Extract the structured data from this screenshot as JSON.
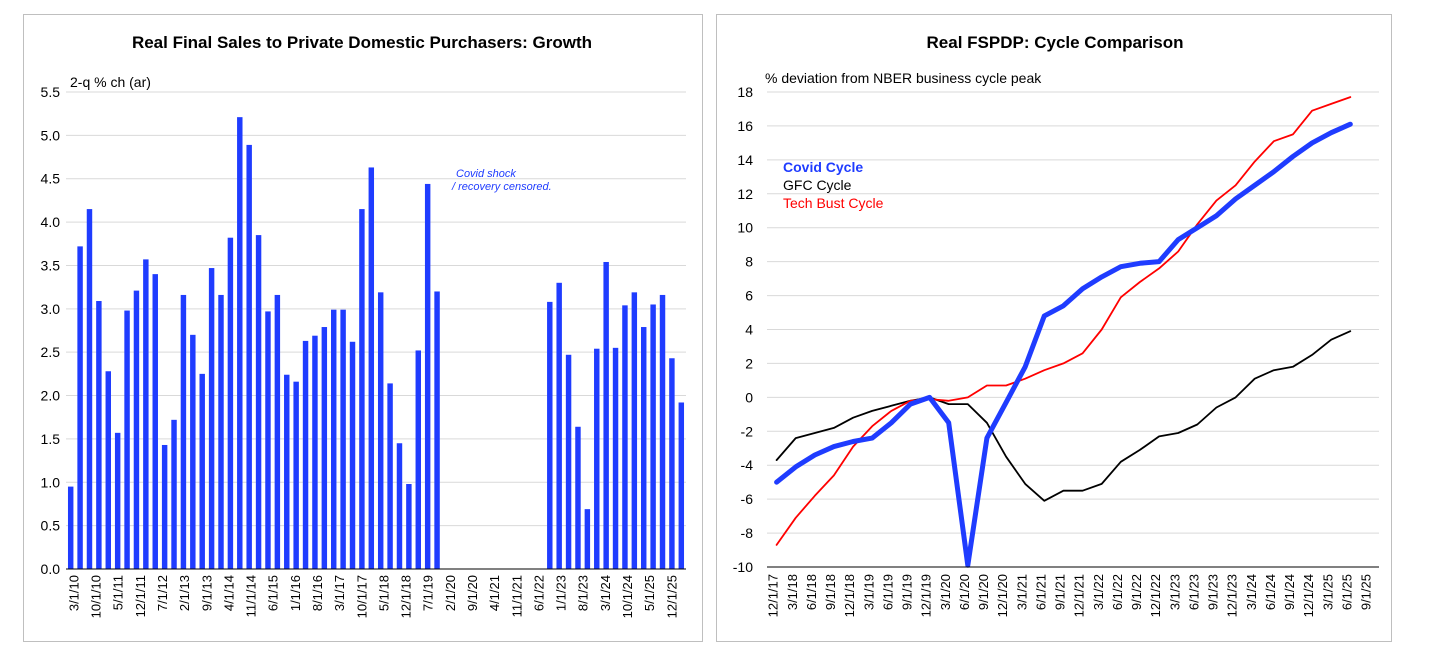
{
  "chart_data": [
    {
      "type": "bar",
      "title": "Real Final Sales to Private Domestic Purchasers: Growth",
      "ylabel": "2-q % ch (ar)",
      "ylim": [
        0,
        5.5
      ],
      "yticks": [
        "0.0",
        "0.5",
        "1.0",
        "1.5",
        "2.0",
        "2.5",
        "3.0",
        "3.5",
        "4.0",
        "4.5",
        "5.0",
        "5.5"
      ],
      "color": "#1f3cff",
      "grid": true,
      "annotation": [
        "Covid shock",
        "/ recovery censored."
      ],
      "x_labels": [
        "3/1/10",
        "10/1/10",
        "5/1/11",
        "12/1/11",
        "7/1/12",
        "2/1/13",
        "9/1/13",
        "4/1/14",
        "11/1/14",
        "6/1/15",
        "1/1/16",
        "8/1/16",
        "3/1/17",
        "10/1/17",
        "5/1/18",
        "12/1/18",
        "7/1/19",
        "2/1/20",
        "9/1/20",
        "4/1/21",
        "11/1/21",
        "6/1/22",
        "1/1/23",
        "8/1/23",
        "3/1/24",
        "10/1/24",
        "5/1/25",
        "12/1/25"
      ],
      "values": [
        0.95,
        3.72,
        4.15,
        3.09,
        2.28,
        1.57,
        2.98,
        3.21,
        3.57,
        3.4,
        1.43,
        1.72,
        3.16,
        2.7,
        2.25,
        3.47,
        3.16,
        3.82,
        5.21,
        4.89,
        3.85,
        2.97,
        3.16,
        2.24,
        2.16,
        2.63,
        2.69,
        2.79,
        2.99,
        2.99,
        2.62,
        4.15,
        4.63,
        3.19,
        2.14,
        1.45,
        0.98,
        2.52,
        4.44,
        3.2,
        null,
        null,
        null,
        null,
        null,
        null,
        null,
        null,
        null,
        null,
        null,
        3.08,
        3.3,
        2.47,
        1.64,
        0.69,
        2.54,
        3.54,
        2.55,
        3.04,
        3.19,
        2.79,
        3.05,
        3.16,
        2.43,
        1.92
      ]
    },
    {
      "type": "line",
      "title": "Real FSPDP: Cycle Comparison",
      "ylabel": "% deviation from NBER business cycle peak",
      "ylim": [
        -10,
        18
      ],
      "yticks": [
        "18",
        "16",
        "14",
        "12",
        "10",
        "8",
        "6",
        "4",
        "2",
        "0",
        "-2",
        "-4",
        "-6",
        "-8",
        "-10"
      ],
      "grid": true,
      "x_labels": [
        "12/1/17",
        "3/1/18",
        "6/1/18",
        "9/1/18",
        "12/1/18",
        "3/1/19",
        "6/1/19",
        "9/1/19",
        "12/1/19",
        "3/1/20",
        "6/1/20",
        "9/1/20",
        "12/1/20",
        "3/1/21",
        "6/1/21",
        "9/1/21",
        "12/1/21",
        "3/1/22",
        "6/1/22",
        "9/1/22",
        "12/1/22",
        "3/1/23",
        "6/1/23",
        "9/1/23",
        "12/1/23",
        "3/1/24",
        "6/1/24",
        "9/1/24",
        "12/1/24",
        "3/1/25",
        "6/1/25",
        "9/1/25"
      ],
      "series": [
        {
          "name": "Covid Cycle",
          "color": "#1f3cff",
          "values": [
            -5.0,
            -4.1,
            -3.4,
            -2.9,
            -2.6,
            -2.4,
            -1.5,
            -0.4,
            0.0,
            -1.5,
            -9.9,
            -2.4,
            -0.3,
            1.8,
            4.8,
            5.4,
            6.4,
            7.1,
            7.7,
            7.9,
            8.0,
            9.3,
            10.0,
            10.7,
            11.7,
            12.5,
            13.3,
            14.2,
            15.0,
            15.6,
            16.1
          ]
        },
        {
          "name": "GFC Cycle",
          "color": "#000000",
          "values": [
            -3.7,
            -2.4,
            -2.1,
            -1.8,
            -1.2,
            -0.8,
            -0.5,
            -0.2,
            0.0,
            -0.4,
            -0.4,
            -1.5,
            -3.5,
            -5.1,
            -6.1,
            -5.5,
            -5.5,
            -5.1,
            -3.8,
            -3.1,
            -2.3,
            -2.1,
            -1.6,
            -0.6,
            0.0,
            1.1,
            1.6,
            1.8,
            2.5,
            3.4,
            3.9
          ]
        },
        {
          "name": "Tech Bust Cycle",
          "color": "#ff0000",
          "values": [
            -8.7,
            -7.1,
            -5.8,
            -4.6,
            -2.9,
            -1.7,
            -0.8,
            -0.2,
            -0.1,
            -0.2,
            0.0,
            0.7,
            0.7,
            1.1,
            1.6,
            2.0,
            2.6,
            4.0,
            5.9,
            6.8,
            7.6,
            8.6,
            10.2,
            11.6,
            12.5,
            13.9,
            15.1,
            15.5,
            16.9,
            17.3,
            17.7
          ]
        }
      ]
    }
  ]
}
